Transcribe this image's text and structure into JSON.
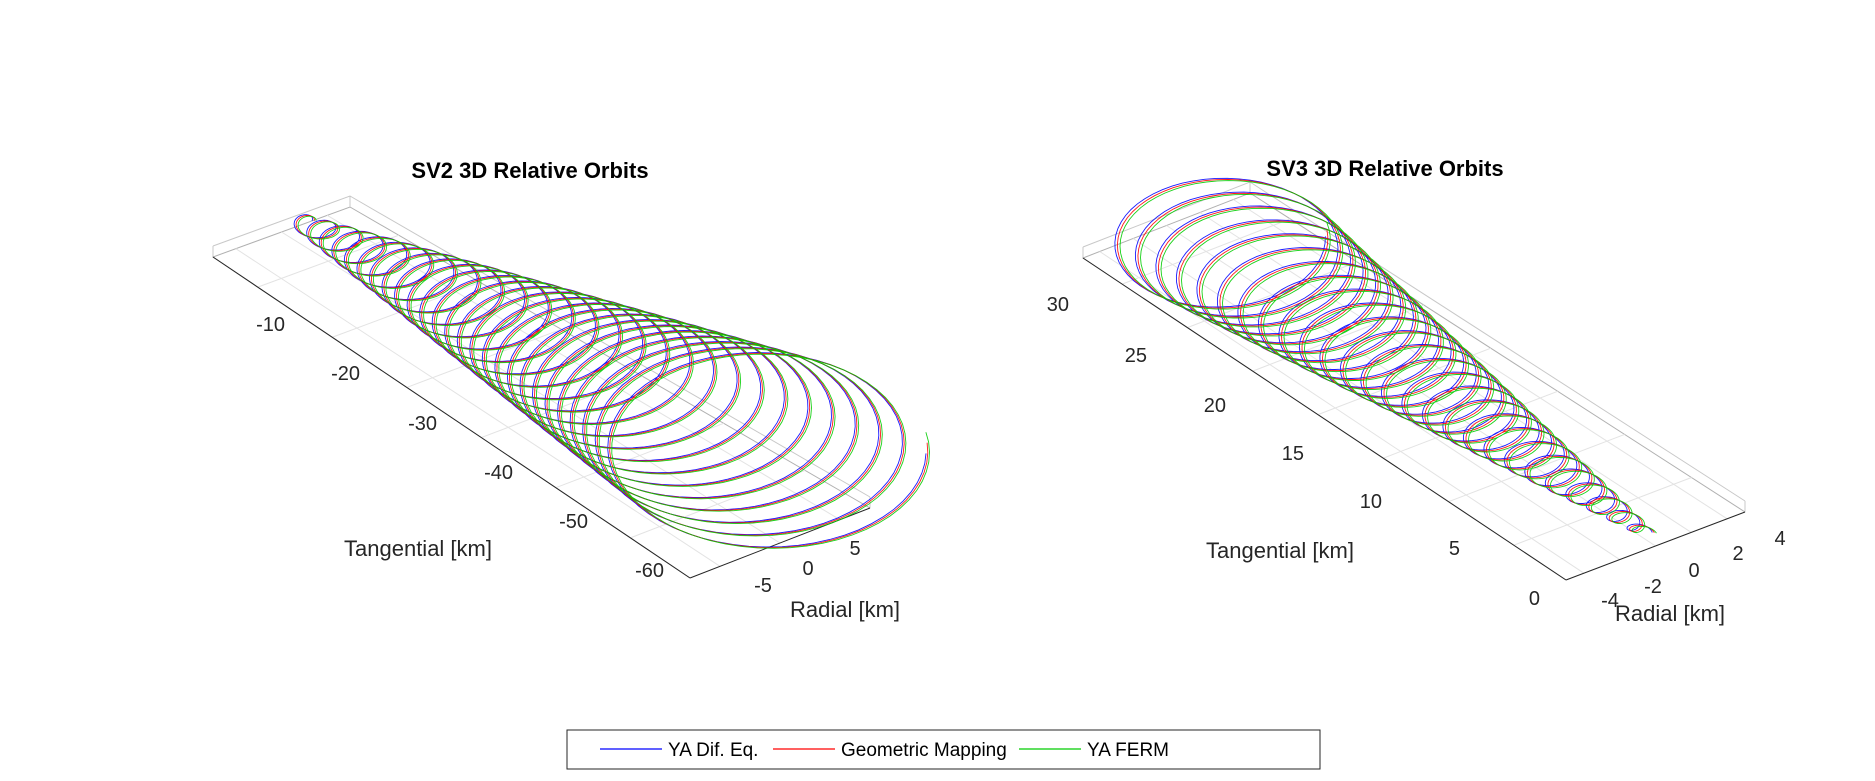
{
  "chart_data": [
    {
      "type": "line",
      "projection": "3d",
      "title": "SV2 3D Relative Orbits",
      "xlabel": "Radial [km]",
      "ylabel": "Tangential [km]",
      "zlabel": "",
      "x_ticks": [
        "-5",
        "0",
        "5"
      ],
      "y_ticks": [
        "-10",
        "-20",
        "-30",
        "-40",
        "-50",
        "-60"
      ],
      "xlim": [
        -7,
        7
      ],
      "ylim": [
        -65,
        0
      ],
      "grid": true,
      "loops": 26,
      "tangential_range": [
        -62,
        -3
      ],
      "radius_range": [
        0.5,
        6.5
      ],
      "series": [
        {
          "name": "YA Dif. Eq.",
          "color": "#0000ff"
        },
        {
          "name": "Geometric Mapping",
          "color": "#ff0000"
        },
        {
          "name": "YA FERM",
          "color": "#00cc00"
        }
      ]
    },
    {
      "type": "line",
      "projection": "3d",
      "title": "SV3 3D Relative Orbits",
      "xlabel": "Radial [km]",
      "ylabel": "Tangential [km]",
      "zlabel": "",
      "x_ticks": [
        "-4",
        "-2",
        "0",
        "2",
        "4"
      ],
      "y_ticks": [
        "0",
        "5",
        "10",
        "15",
        "20",
        "25",
        "30"
      ],
      "xlim": [
        -5,
        5
      ],
      "ylim": [
        0,
        33
      ],
      "grid": true,
      "loops": 26,
      "tangential_range": [
        2,
        31
      ],
      "radius_range": [
        0.3,
        4.6
      ],
      "series": [
        {
          "name": "YA Dif. Eq.",
          "color": "#0000ff"
        },
        {
          "name": "Geometric Mapping",
          "color": "#ff0000"
        },
        {
          "name": "YA FERM",
          "color": "#00cc00"
        }
      ]
    }
  ],
  "legend": {
    "placement": "bottom-center",
    "items": [
      {
        "label": "YA Dif. Eq.",
        "color": "#0000ff"
      },
      {
        "label": "Geometric Mapping",
        "color": "#ff0000"
      },
      {
        "label": "YA FERM",
        "color": "#00cc00"
      }
    ]
  }
}
